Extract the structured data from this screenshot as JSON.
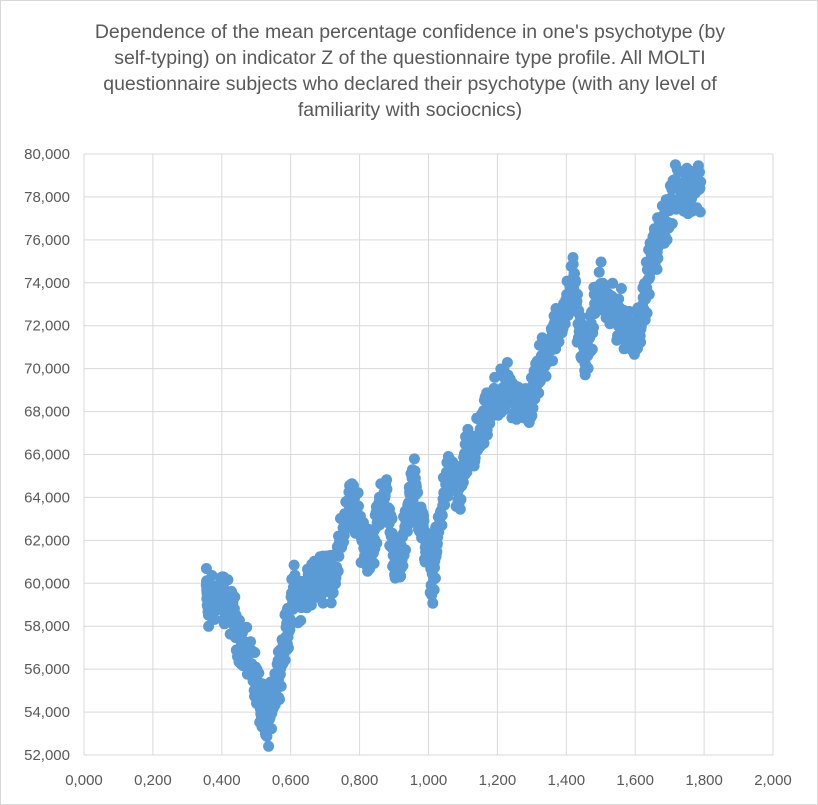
{
  "chart_data": {
    "type": "scatter",
    "title_lines": [
      "Dependence of the mean percentage confidence in one's psychotype (by",
      "self-typing) on indicator Z of the questionnaire type profile. All MOLTI",
      "questionnaire subjects who declared their psychotype (with any level of",
      "familiarity with sociocnics)"
    ],
    "xlabel": "",
    "ylabel": "",
    "xlim": [
      0,
      2
    ],
    "ylim": [
      52000,
      80000
    ],
    "x_ticks": [
      0,
      0.2,
      0.4,
      0.6,
      0.8,
      1.0,
      1.2,
      1.4,
      1.6,
      1.8,
      2.0
    ],
    "x_tick_labels": [
      "0,000",
      "0,200",
      "0,400",
      "0,600",
      "0,800",
      "1,000",
      "1,200",
      "1,400",
      "1,600",
      "1,800",
      "2,000"
    ],
    "y_ticks": [
      52000,
      54000,
      56000,
      58000,
      60000,
      62000,
      64000,
      66000,
      68000,
      70000,
      72000,
      74000,
      76000,
      78000,
      80000
    ],
    "y_tick_labels": [
      "52,000",
      "54,000",
      "56,000",
      "58,000",
      "60,000",
      "62,000",
      "64,000",
      "66,000",
      "68,000",
      "70,000",
      "72,000",
      "74,000",
      "76,000",
      "78,000",
      "80,000"
    ],
    "grid": true,
    "legend": "none",
    "marker_color": "#5b9bd5",
    "series": [
      {
        "anchors": [
          [
            0.355,
            59.8
          ],
          [
            0.36,
            59.0
          ],
          [
            0.37,
            59.1
          ],
          [
            0.38,
            59.3
          ],
          [
            0.395,
            59.5
          ],
          [
            0.41,
            59.2
          ],
          [
            0.43,
            58.6
          ],
          [
            0.45,
            57.6
          ],
          [
            0.47,
            56.5
          ],
          [
            0.49,
            56.2
          ],
          [
            0.505,
            55.0
          ],
          [
            0.52,
            53.8
          ],
          [
            0.53,
            53.3
          ],
          [
            0.545,
            54.4
          ],
          [
            0.56,
            55.7
          ],
          [
            0.575,
            56.6
          ],
          [
            0.59,
            57.8
          ],
          [
            0.61,
            59.7
          ],
          [
            0.63,
            59.2
          ],
          [
            0.65,
            59.8
          ],
          [
            0.67,
            60.2
          ],
          [
            0.69,
            60.3
          ],
          [
            0.705,
            61.0
          ],
          [
            0.72,
            60.3
          ],
          [
            0.74,
            61.3
          ],
          [
            0.76,
            63.2
          ],
          [
            0.78,
            63.8
          ],
          [
            0.8,
            62.6
          ],
          [
            0.82,
            61.7
          ],
          [
            0.84,
            61.9
          ],
          [
            0.86,
            63.6
          ],
          [
            0.875,
            64.2
          ],
          [
            0.89,
            62.5
          ],
          [
            0.905,
            61.1
          ],
          [
            0.92,
            60.9
          ],
          [
            0.94,
            63.4
          ],
          [
            0.955,
            65.0
          ],
          [
            0.97,
            63.6
          ],
          [
            0.985,
            62.3
          ],
          [
            1.0,
            61.2
          ],
          [
            1.015,
            60.3
          ],
          [
            1.03,
            62.6
          ],
          [
            1.05,
            64.7
          ],
          [
            1.07,
            65.2
          ],
          [
            1.09,
            64.0
          ],
          [
            1.11,
            66.0
          ],
          [
            1.13,
            66.2
          ],
          [
            1.15,
            66.8
          ],
          [
            1.17,
            67.7
          ],
          [
            1.19,
            68.4
          ],
          [
            1.21,
            68.6
          ],
          [
            1.23,
            69.1
          ],
          [
            1.25,
            68.3
          ],
          [
            1.27,
            68.9
          ],
          [
            1.29,
            68.1
          ],
          [
            1.31,
            69.3
          ],
          [
            1.33,
            70.4
          ],
          [
            1.35,
            71.0
          ],
          [
            1.37,
            71.8
          ],
          [
            1.39,
            72.6
          ],
          [
            1.41,
            73.2
          ],
          [
            1.42,
            74.2
          ],
          [
            1.43,
            72.8
          ],
          [
            1.445,
            71.2
          ],
          [
            1.46,
            70.5
          ],
          [
            1.48,
            72.7
          ],
          [
            1.5,
            73.9
          ],
          [
            1.52,
            72.8
          ],
          [
            1.54,
            72.5
          ],
          [
            1.56,
            72.4
          ],
          [
            1.58,
            71.9
          ],
          [
            1.6,
            71.7
          ],
          [
            1.62,
            72.4
          ],
          [
            1.64,
            74.6
          ],
          [
            1.655,
            75.4
          ],
          [
            1.67,
            76.2
          ],
          [
            1.69,
            77.1
          ],
          [
            1.71,
            78.0
          ],
          [
            1.73,
            78.4
          ],
          [
            1.75,
            78.2
          ],
          [
            1.77,
            78.5
          ],
          [
            1.79,
            78.7
          ]
        ]
      }
    ]
  }
}
